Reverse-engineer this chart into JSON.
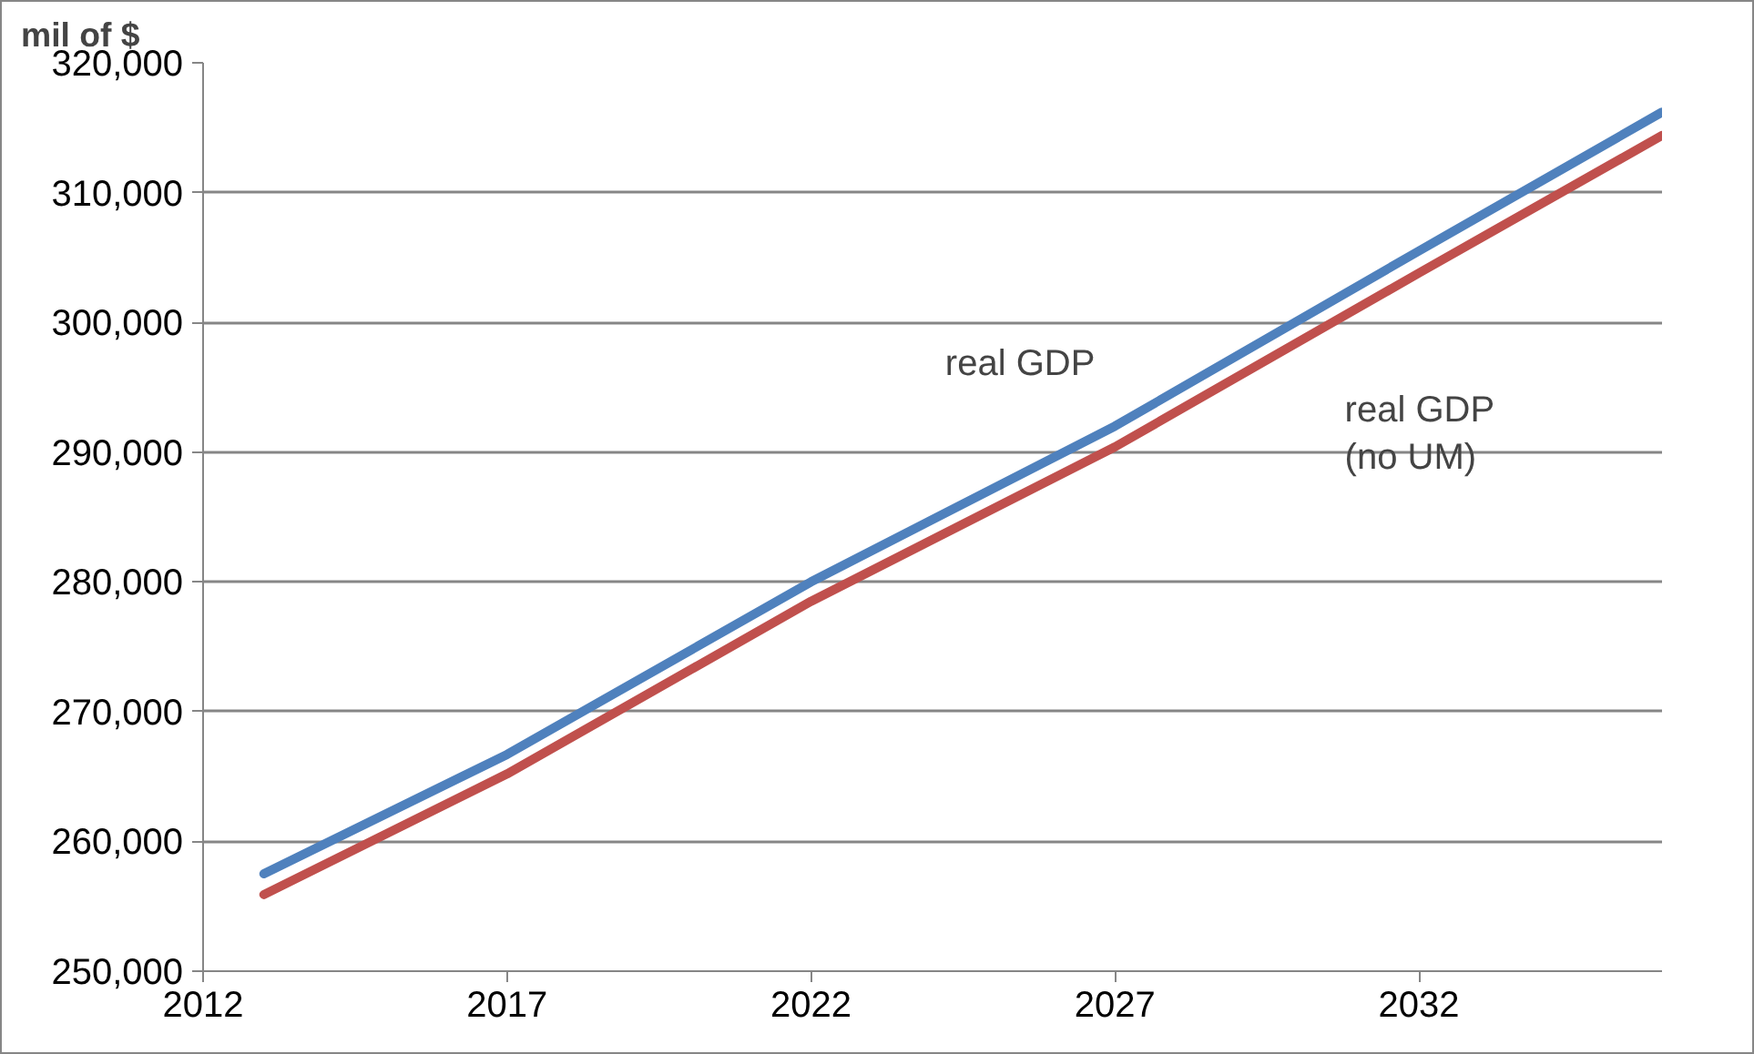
{
  "chart_data": {
    "type": "line",
    "ylabel": "mil of $",
    "xlim": [
      2012,
      2036
    ],
    "xticks": [
      2012,
      2017,
      2022,
      2027,
      2032
    ],
    "ylim": [
      250000,
      320000
    ],
    "yticks": [
      {
        "value": 250000,
        "label": "250,000"
      },
      {
        "value": 260000,
        "label": "260,000"
      },
      {
        "value": 270000,
        "label": "270,000"
      },
      {
        "value": 280000,
        "label": "280,000"
      },
      {
        "value": 290000,
        "label": "290,000"
      },
      {
        "value": 300000,
        "label": "300,000"
      },
      {
        "value": 310000,
        "label": "310,000"
      },
      {
        "value": 320000,
        "label": "320,000"
      }
    ],
    "grid": "y",
    "x": [
      2013,
      2017,
      2022,
      2027,
      2032,
      2036
    ],
    "series": [
      {
        "name": "real GDP",
        "color": "#4f81bd",
        "values": [
          257500,
          266700,
          280000,
          292000,
          305500,
          316200
        ]
      },
      {
        "name": "real GDP\n(no UM)",
        "color": "#c0504d",
        "values": [
          255900,
          265200,
          278500,
          290400,
          303800,
          314400
        ]
      }
    ]
  }
}
